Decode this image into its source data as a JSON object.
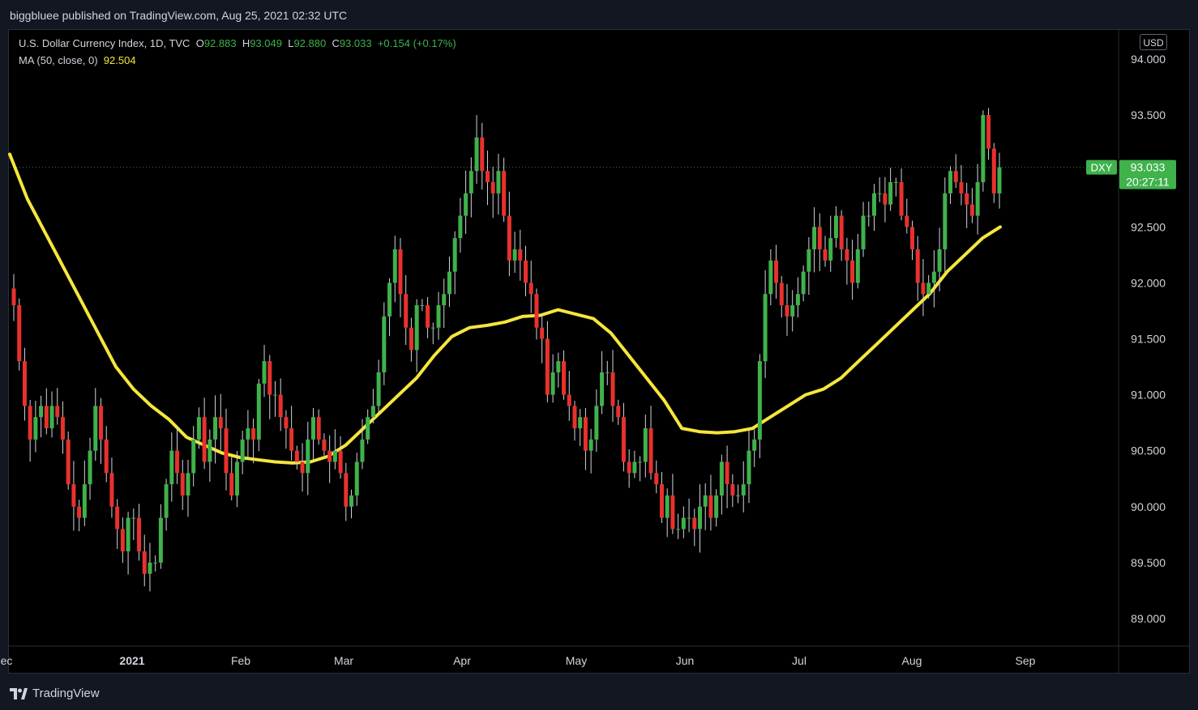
{
  "header": {
    "published": "biggbluee published on TradingView.com, Aug 25, 2021 02:32 UTC"
  },
  "legend": {
    "symbol": "U.S. Dollar Currency Index, 1D, TVC",
    "o_label": "O",
    "o_value": "92.883",
    "h_label": "H",
    "h_value": "93.049",
    "l_label": "L",
    "l_value": "92.880",
    "c_label": "C",
    "c_value": "93.033",
    "change": "+0.154 (+0.17%)",
    "ma_label": "MA (50, close, 0)",
    "ma_value": "92.504"
  },
  "currency": "USD",
  "price_tag": {
    "symbol": "DXY",
    "price": "93.033",
    "countdown": "20:27:11"
  },
  "footer": {
    "brand": "TradingView"
  },
  "colors": {
    "up": "#3fb24b",
    "down": "#e8312d",
    "ma": "#f5e63c",
    "background": "#000000",
    "axis_text": "#d1d4dc"
  },
  "chart_data": {
    "type": "candlestick",
    "title": "U.S. Dollar Currency Index, 1D, TVC",
    "ylim": [
      88.7,
      94.2
    ],
    "y_ticks": [
      "94.000",
      "93.500",
      "93.000",
      "92.500",
      "92.000",
      "91.500",
      "91.000",
      "90.500",
      "90.000",
      "89.500",
      "89.000"
    ],
    "x_ticks": [
      {
        "label": "ec",
        "bold": false
      },
      {
        "label": "2021",
        "bold": true
      },
      {
        "label": "Feb",
        "bold": false
      },
      {
        "label": "Mar",
        "bold": false
      },
      {
        "label": "Apr",
        "bold": false
      },
      {
        "label": "May",
        "bold": false
      },
      {
        "label": "Jun",
        "bold": false
      },
      {
        "label": "Jul",
        "bold": false
      },
      {
        "label": "Aug",
        "bold": false
      },
      {
        "label": "Sep",
        "bold": false
      }
    ],
    "last_close": 93.033,
    "series": [
      {
        "name": "DXY",
        "close": [
          91.8,
          91.3,
          90.9,
          90.6,
          90.8,
          90.9,
          90.7,
          90.9,
          90.8,
          90.6,
          90.2,
          90.0,
          89.9,
          90.2,
          90.5,
          90.9,
          90.6,
          90.3,
          90.0,
          89.8,
          89.6,
          89.9,
          89.9,
          89.6,
          89.4,
          89.5,
          89.5,
          89.9,
          90.2,
          90.5,
          90.3,
          90.1,
          90.3,
          90.6,
          90.8,
          90.4,
          90.6,
          90.8,
          90.7,
          90.3,
          90.1,
          90.4,
          90.6,
          90.7,
          90.6,
          91.1,
          91.3,
          91.0,
          91.0,
          90.8,
          90.7,
          90.5,
          90.4,
          90.3,
          90.6,
          90.8,
          90.6,
          90.5,
          90.4,
          90.5,
          90.3,
          90.0,
          90.1,
          90.4,
          90.6,
          90.8,
          90.9,
          91.2,
          91.7,
          92.0,
          92.3,
          91.9,
          91.6,
          91.4,
          91.8,
          91.8,
          91.6,
          91.6,
          91.8,
          91.9,
          92.1,
          92.4,
          92.6,
          92.8,
          93.0,
          93.3,
          93.0,
          92.9,
          92.8,
          93.0,
          92.6,
          92.2,
          92.3,
          92.2,
          92.0,
          91.9,
          91.6,
          91.5,
          91.0,
          91.2,
          91.3,
          91.0,
          90.9,
          90.7,
          90.8,
          90.5,
          90.6,
          90.9,
          91.2,
          91.2,
          90.9,
          90.8,
          90.4,
          90.3,
          90.4,
          90.4,
          90.7,
          90.3,
          90.2,
          89.9,
          90.1,
          89.8,
          89.8,
          89.9,
          89.9,
          89.8,
          90.0,
          90.1,
          89.9,
          90.1,
          90.4,
          90.2,
          90.1,
          90.1,
          90.2,
          90.5,
          90.6,
          91.3,
          91.9,
          92.2,
          92.0,
          91.8,
          91.7,
          91.8,
          91.9,
          92.1,
          92.3,
          92.5,
          92.3,
          92.2,
          92.4,
          92.6,
          92.3,
          92.2,
          92.0,
          92.3,
          92.6,
          92.6,
          92.8,
          92.8,
          92.7,
          92.9,
          92.9,
          92.6,
          92.5,
          92.3,
          92.0,
          91.9,
          92.0,
          92.1,
          92.3,
          92.8,
          93.0,
          92.9,
          92.8,
          92.7,
          92.6,
          92.9,
          93.5,
          93.2,
          92.8,
          93.033
        ]
      },
      {
        "name": "MA (50, close, 0)",
        "values": [
          93.15,
          92.75,
          92.45,
          92.15,
          91.85,
          91.55,
          91.25,
          91.05,
          90.9,
          90.78,
          90.62,
          90.55,
          90.48,
          90.44,
          90.42,
          90.4,
          90.39,
          90.4,
          90.45,
          90.55,
          90.7,
          90.85,
          91.0,
          91.15,
          91.35,
          91.52,
          91.6,
          91.62,
          91.65,
          91.7,
          91.71,
          91.76,
          91.72,
          91.68,
          91.55,
          91.35,
          91.15,
          90.95,
          90.7,
          90.67,
          90.66,
          90.67,
          90.7,
          90.8,
          90.9,
          91.0,
          91.05,
          91.15,
          91.3,
          91.45,
          91.6,
          91.75,
          91.9,
          92.1,
          92.25,
          92.4,
          92.5
        ]
      }
    ]
  }
}
